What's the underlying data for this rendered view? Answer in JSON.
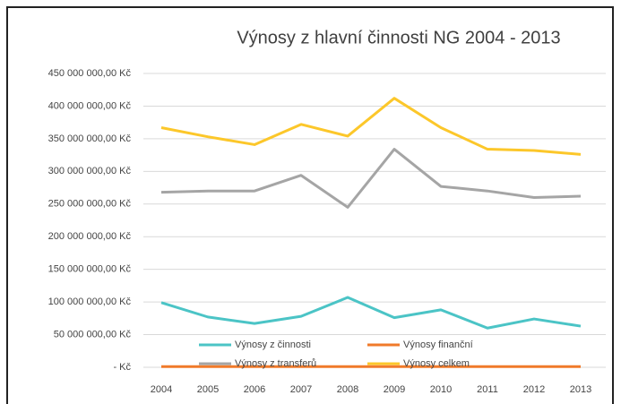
{
  "chart_data": {
    "type": "line",
    "title": "Výnosy z hlavní činnosti NG 2004 - 2013",
    "categories": [
      "2004",
      "2005",
      "2006",
      "2007",
      "2008",
      "2009",
      "2010",
      "2011",
      "2012",
      "2013"
    ],
    "series": [
      {
        "name": "Výnosy z činnosti",
        "color": "#4bc4c6",
        "values": [
          99000000,
          77000000,
          67000000,
          78000000,
          107000000,
          76000000,
          88000000,
          60000000,
          74000000,
          63000000
        ]
      },
      {
        "name": "Výnosy finanční",
        "color": "#f07a2a",
        "values": [
          1000000,
          1000000,
          1000000,
          1000000,
          1000000,
          1000000,
          1000000,
          1000000,
          1000000,
          1000000
        ]
      },
      {
        "name": "Výnosy z transferů",
        "color": "#a5a5a5",
        "values": [
          268000000,
          270000000,
          270000000,
          294000000,
          245000000,
          334000000,
          277000000,
          270000000,
          260000000,
          262000000
        ]
      },
      {
        "name": "Výnosy celkem",
        "color": "#fcc72a",
        "values": [
          367000000,
          353000000,
          341000000,
          372000000,
          354000000,
          412000000,
          367000000,
          334000000,
          332000000,
          326000000
        ]
      }
    ],
    "ylim": [
      0,
      450000000
    ],
    "yticks": [
      {
        "value": 0,
        "label": "- Kč"
      },
      {
        "value": 50000000,
        "label": "50 000 000,00 Kč"
      },
      {
        "value": 100000000,
        "label": "100 000 000,00 Kč"
      },
      {
        "value": 150000000,
        "label": "150 000 000,00 Kč"
      },
      {
        "value": 200000000,
        "label": "200 000 000,00 Kč"
      },
      {
        "value": 250000000,
        "label": "250 000 000,00 Kč"
      },
      {
        "value": 300000000,
        "label": "300 000 000,00 Kč"
      },
      {
        "value": 350000000,
        "label": "350 000 000,00 Kč"
      },
      {
        "value": 400000000,
        "label": "400 000 000,00 Kč"
      },
      {
        "value": 450000000,
        "label": "450 000 000,00 Kč"
      }
    ],
    "grid": true,
    "legend": "bottom"
  }
}
